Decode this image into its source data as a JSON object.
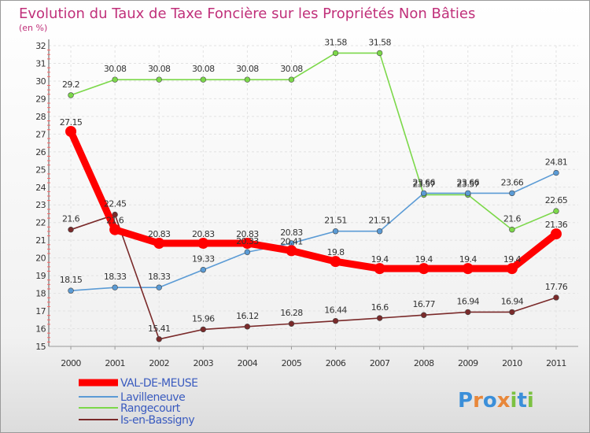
{
  "title": "Evolution du Taux de Taxe Foncière sur les Propriétés Non Bâties",
  "unit_label": "(en %)",
  "logo_text": "Proxiti",
  "chart_data": {
    "type": "line",
    "title": "Evolution du Taux de Taxe Foncière sur les Propriétés Non Bâties",
    "ylabel": "(en %)",
    "xlabel": "",
    "ylim": [
      15,
      32
    ],
    "yticks": [
      "15",
      "16",
      "17",
      "18",
      "19",
      "20",
      "21",
      "22",
      "23",
      "24",
      "25",
      "26",
      "27",
      "28",
      "29",
      "30",
      "31",
      "32"
    ],
    "grid": true,
    "legend_position": "bottom-left",
    "categories": [
      "2000",
      "2001",
      "2002",
      "2003",
      "2004",
      "2005",
      "2006",
      "2007",
      "2008",
      "2009",
      "2010",
      "2011"
    ],
    "series": [
      {
        "name": "VAL-DE-MEUSE",
        "color": "#ff0000",
        "values": [
          27.15,
          21.6,
          20.83,
          20.83,
          20.83,
          20.41,
          19.8,
          19.4,
          19.4,
          19.4,
          19.4,
          21.36
        ],
        "labels": [
          "27.15",
          "21.6",
          "20.83",
          "20.83",
          "20.83",
          "20.41",
          "19.8",
          "19.4",
          "19.4",
          "19.4",
          "19.4",
          "21.36"
        ]
      },
      {
        "name": "Lavilleneuve",
        "color": "#5b9bd5",
        "values": [
          18.15,
          18.33,
          18.33,
          19.33,
          20.33,
          20.83,
          21.51,
          21.51,
          23.66,
          23.66,
          23.66,
          24.81
        ],
        "labels": [
          "18.15",
          "18.33",
          "18.33",
          "19.33",
          "20.33",
          "20.83",
          "21.51",
          "21.51",
          "23.66",
          "23.66",
          "23.66",
          "24.81"
        ]
      },
      {
        "name": "Rangecourt",
        "color": "#7cd84a",
        "values": [
          29.2,
          30.08,
          30.08,
          30.08,
          30.08,
          30.08,
          31.58,
          31.58,
          23.57,
          23.57,
          21.6,
          22.65
        ],
        "labels": [
          "29.2",
          "30.08",
          "30.08",
          "30.08",
          "30.08",
          "30.08",
          "31.58",
          "31.58",
          "23.57",
          "23.57",
          "21.6",
          "22.65"
        ]
      },
      {
        "name": "Is-en-Bassigny",
        "color": "#7a2a2a",
        "values": [
          21.6,
          22.45,
          15.41,
          15.96,
          16.12,
          16.28,
          16.44,
          16.6,
          16.77,
          16.94,
          16.94,
          17.76
        ],
        "labels": [
          "21.6",
          "22.45",
          "15.41",
          "15.96",
          "16.12",
          "16.28",
          "16.44",
          "16.6",
          "16.77",
          "16.94",
          "16.94",
          "17.76"
        ]
      }
    ]
  }
}
